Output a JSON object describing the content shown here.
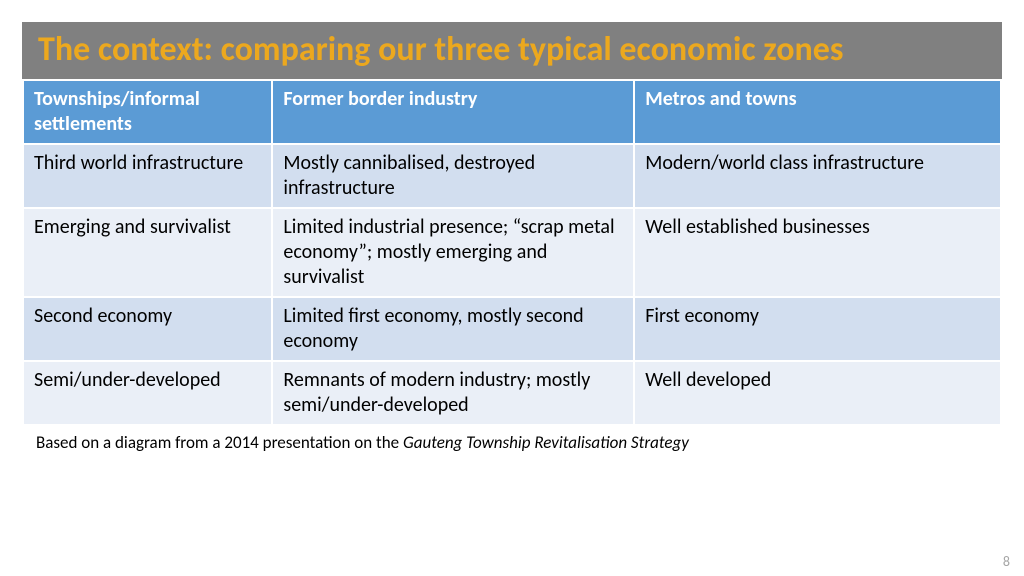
{
  "type": "table",
  "title": "The context: comparing our three typical economic zones",
  "title_bar": {
    "background_color": "#808080",
    "text_color": "#eca81e",
    "font_size": 34
  },
  "table": {
    "header_background": "#5b9bd5",
    "header_text_color": "#ffffff",
    "header_fontsize": 20,
    "body_fontsize": 20,
    "body_text_color": "#000000",
    "row_colors": [
      "#d2deef",
      "#eaeff7",
      "#d2deef",
      "#eaeff7"
    ],
    "col_widths": [
      "25.5%",
      "37%",
      "37.5%"
    ],
    "columns": [
      "Townships/informal settlements",
      "Former border industry",
      "Metros and towns"
    ],
    "rows": [
      [
        "Third world infrastructure",
        "Mostly cannibalised, destroyed infrastructure",
        "Modern/world class infrastructure"
      ],
      [
        "Emerging and survivalist",
        "Limited industrial presence; “scrap metal economy”; mostly emerging and survivalist",
        "Well established businesses"
      ],
      [
        "Second economy",
        "Limited first economy, mostly second economy",
        "First economy"
      ],
      [
        "Semi/under-developed",
        "Remnants of modern industry; mostly semi/under-developed",
        "Well developed"
      ]
    ]
  },
  "caption": {
    "prefix": "Based on a diagram from a 2014 presentation on the ",
    "italic": "Gauteng Township Revitalisation Strategy",
    "fontsize": 17,
    "color": "#000000"
  },
  "page_number": {
    "value": "8",
    "color": "#a6a6a6",
    "fontsize": 14
  }
}
